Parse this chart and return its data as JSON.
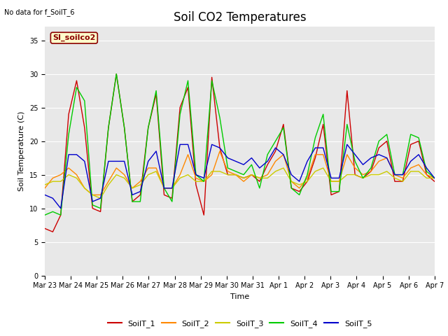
{
  "title": "Soil CO2 Temperatures",
  "xlabel": "Time",
  "ylabel": "Soil Temperature (C)",
  "note": "No data for f_SoilT_6",
  "legend_label": "SI_soilco2",
  "ylim": [
    0,
    37
  ],
  "yticks": [
    0,
    5,
    10,
    15,
    20,
    25,
    30,
    35
  ],
  "fig_bg": "#ffffff",
  "axes_bg": "#e8e8e8",
  "colors": {
    "SoilT_1": "#cc0000",
    "SoilT_2": "#ff8800",
    "SoilT_3": "#cccc00",
    "SoilT_4": "#00cc00",
    "SoilT_5": "#0000cc"
  },
  "series": {
    "SoilT_1": [
      7.0,
      6.5,
      9.0,
      24.0,
      29.0,
      22.0,
      10.0,
      9.5,
      22.0,
      30.0,
      22.0,
      11.0,
      12.0,
      22.0,
      27.0,
      12.0,
      11.5,
      25.0,
      28.0,
      13.5,
      9.0,
      29.5,
      19.0,
      15.0,
      15.0,
      14.5,
      15.0,
      14.0,
      16.5,
      18.5,
      22.5,
      13.0,
      12.5,
      14.0,
      17.5,
      22.5,
      12.0,
      12.5,
      27.5,
      15.0,
      14.5,
      15.5,
      19.0,
      20.0,
      14.0,
      14.0,
      19.5,
      20.0,
      15.0,
      14.0
    ],
    "SoilT_2": [
      13.0,
      14.5,
      15.0,
      16.0,
      15.0,
      13.0,
      12.0,
      12.0,
      14.0,
      16.0,
      15.0,
      13.0,
      14.0,
      16.0,
      16.0,
      13.0,
      13.0,
      15.0,
      18.0,
      14.5,
      14.0,
      15.0,
      18.5,
      15.5,
      15.0,
      14.0,
      15.0,
      14.5,
      15.0,
      17.0,
      18.0,
      14.0,
      13.0,
      14.5,
      18.0,
      18.0,
      14.0,
      14.0,
      18.0,
      16.0,
      15.0,
      15.5,
      17.0,
      17.5,
      15.0,
      14.5,
      16.0,
      16.5,
      15.0,
      14.5
    ],
    "SoilT_3": [
      13.5,
      14.0,
      14.0,
      15.0,
      14.5,
      13.0,
      12.0,
      11.5,
      13.5,
      15.0,
      14.5,
      13.0,
      13.5,
      15.0,
      15.5,
      13.0,
      13.0,
      14.5,
      15.0,
      14.0,
      14.0,
      15.5,
      15.5,
      15.0,
      15.0,
      14.5,
      15.0,
      14.5,
      14.5,
      15.5,
      16.0,
      14.0,
      13.5,
      14.0,
      15.5,
      16.0,
      14.0,
      14.0,
      15.0,
      15.0,
      14.5,
      15.0,
      15.0,
      15.5,
      14.5,
      14.0,
      15.5,
      15.5,
      14.5,
      14.5
    ],
    "SoilT_4": [
      9.0,
      9.5,
      9.0,
      21.0,
      28.0,
      26.0,
      10.5,
      10.0,
      22.0,
      30.0,
      22.0,
      11.0,
      11.0,
      22.0,
      27.5,
      13.0,
      11.0,
      24.0,
      29.0,
      15.0,
      14.0,
      29.0,
      23.5,
      16.0,
      15.5,
      15.0,
      16.5,
      13.0,
      18.0,
      20.0,
      22.0,
      13.0,
      12.0,
      15.0,
      20.5,
      24.0,
      12.5,
      12.5,
      22.5,
      17.0,
      14.5,
      16.0,
      20.0,
      21.0,
      15.0,
      15.0,
      21.0,
      20.5,
      15.5,
      14.5
    ],
    "SoilT_5": [
      12.0,
      11.5,
      10.0,
      18.0,
      18.0,
      17.0,
      11.0,
      11.5,
      17.0,
      17.0,
      17.0,
      12.0,
      12.5,
      17.0,
      18.5,
      13.0,
      13.0,
      19.5,
      19.5,
      15.0,
      14.5,
      19.5,
      19.0,
      17.5,
      17.0,
      16.5,
      17.5,
      16.0,
      17.0,
      19.0,
      18.0,
      15.0,
      14.0,
      17.0,
      19.0,
      19.0,
      14.5,
      14.5,
      19.5,
      18.0,
      16.5,
      17.5,
      18.0,
      17.5,
      15.0,
      15.0,
      17.0,
      18.0,
      16.0,
      14.5
    ]
  },
  "xtick_labels": [
    "Mar 23",
    "Mar 24",
    "Mar 25",
    "Mar 26",
    "Mar 27",
    "Mar 28",
    "Mar 29",
    "Mar 30",
    "Mar 31",
    "Apr 1",
    "Apr 2",
    "Apr 3",
    "Apr 4",
    "Apr 5",
    "Apr 6",
    "Apr 7"
  ],
  "n_points": 50,
  "title_fontsize": 12,
  "axis_label_fontsize": 8,
  "tick_fontsize": 7,
  "note_fontsize": 7,
  "legend_fontsize": 8
}
